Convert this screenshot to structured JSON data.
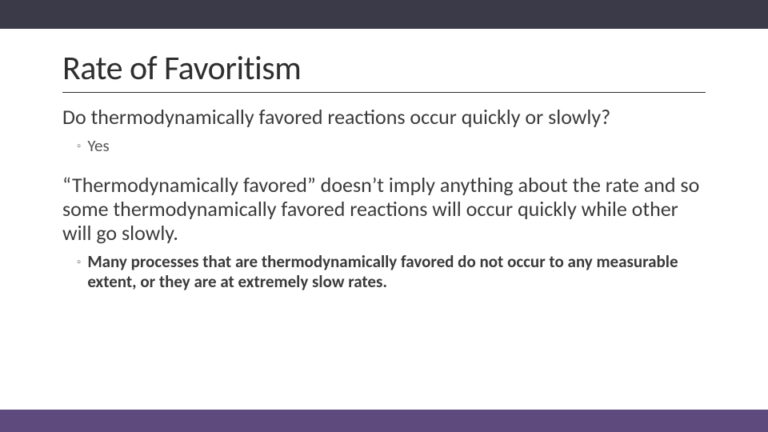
{
  "slide": {
    "background_color": "#ffffff",
    "top_band_color": "#3b3a48",
    "bottom_band_color": "#5e4a7d",
    "title": {
      "text": "Rate of Favoritism",
      "fontsize": 42,
      "color": "#2e2e2e",
      "underline_color": "#2e2e2e"
    },
    "body": [
      {
        "type": "paragraph",
        "text": "Do thermodynamically favored reactions occur quickly or slowly?",
        "fontsize": 26,
        "color": "#3a3a3a"
      },
      {
        "type": "sub",
        "bullet": "◦",
        "text": "Yes",
        "fontsize": 21,
        "bullet_color": "#8a8a8a",
        "text_color": "#555555",
        "bold": false
      },
      {
        "type": "paragraph",
        "text": "“Thermodynamically favored” doesn’t imply anything about the rate and so some thermodynamically favored reactions will occur quickly while other will go slowly.",
        "fontsize": 26,
        "color": "#3a3a3a"
      },
      {
        "type": "sub",
        "bullet": "◦",
        "text": "Many processes that are thermodynamically favored do not occur to any measurable extent, or they are at extremely slow rates.",
        "fontsize": 21,
        "bullet_color": "#8a8a8a",
        "text_color": "#3a3a3a",
        "bold": true
      }
    ]
  }
}
